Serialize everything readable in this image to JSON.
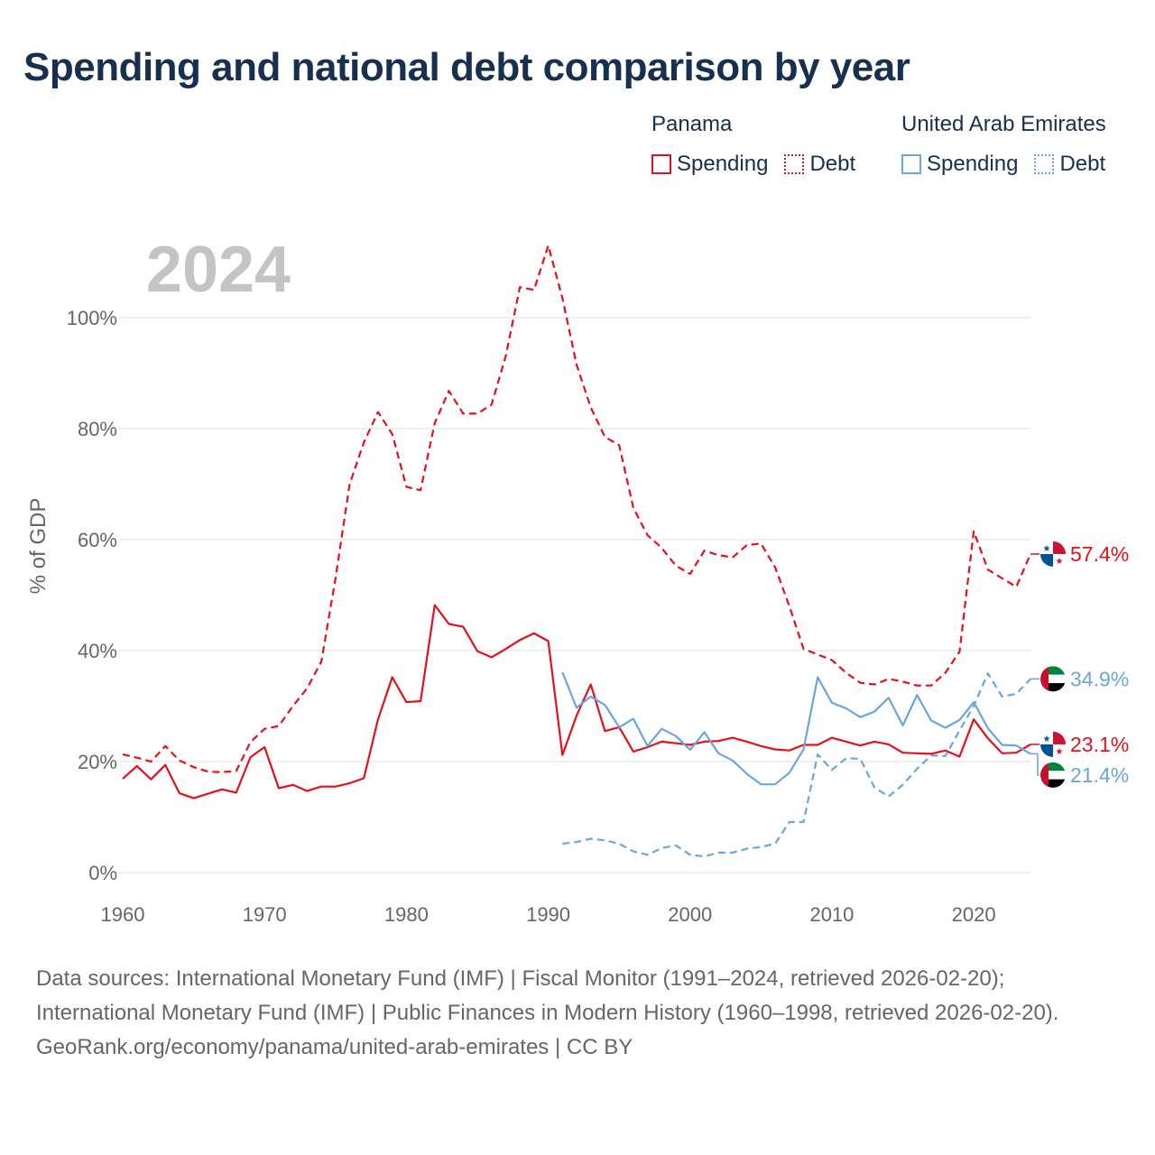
{
  "title": "Spending and national debt comparison by year",
  "legend": [
    {
      "group": "Panama",
      "items": [
        {
          "label": "Spending",
          "style": "solid",
          "color": "#e3111b"
        },
        {
          "label": "Debt",
          "style": "dotted",
          "color": "#e3111b"
        }
      ]
    },
    {
      "group": "United Arab Emirates",
      "items": [
        {
          "label": "Spending",
          "style": "solid",
          "color": "#6aa6de"
        },
        {
          "label": "Debt",
          "style": "dotted",
          "color": "#6aa6de"
        }
      ]
    }
  ],
  "year_label": "2024",
  "footer": {
    "sources": "Data sources: International Monetary Fund (IMF) | Fiscal Monitor (1991–2024, retrieved 2026-02-20); International Monetary Fund (IMF) | Public Finances in Modern History (1960–1998, retrieved 2026-02-20).",
    "attribution": "GeoRank.org/economy/panama/united-arab-emirates | CC BY"
  },
  "chart_data": {
    "type": "line",
    "ylabel": "% of GDP",
    "xlim": [
      1960,
      2024
    ],
    "ylim": [
      0,
      100
    ],
    "x_ticks": [
      1960,
      1970,
      1980,
      1990,
      2000,
      2010,
      2020
    ],
    "y_ticks": [
      0,
      20,
      40,
      60,
      80,
      100
    ],
    "y_tick_labels": [
      "0%",
      "20%",
      "40%",
      "60%",
      "80%",
      "100%"
    ],
    "grid": true,
    "series": [
      {
        "name": "Panama Debt",
        "country": "Panama",
        "metric": "Debt",
        "color": "#e3111b",
        "dash": "dashed",
        "end_label": "57.4%",
        "flag": "panama",
        "start_year": 1960,
        "values": [
          21.3,
          20.7,
          20.0,
          22.8,
          20.2,
          19.0,
          18.2,
          18.1,
          18.3,
          23.5,
          25.9,
          26.4,
          30.0,
          33.2,
          38.0,
          53.0,
          70.0,
          77.5,
          83.0,
          79.0,
          69.5,
          68.9,
          81.0,
          86.8,
          82.7,
          82.7,
          84.3,
          93.0,
          105.5,
          105.0,
          113.0,
          103.5,
          91.5,
          83.8,
          78.5,
          77.0,
          65.7,
          60.8,
          58.5,
          55.3,
          53.8,
          58.0,
          57.2,
          56.8,
          59.0,
          59.3,
          55.0,
          48.0,
          40.3,
          39.3,
          38.3,
          36.0,
          34.2,
          33.9,
          34.9,
          34.4,
          33.7,
          33.7,
          36.0,
          39.8,
          61.5,
          54.6,
          53.0,
          51.5,
          57.4
        ]
      },
      {
        "name": "Panama Spending",
        "country": "Panama",
        "metric": "Spending",
        "color": "#e3111b",
        "dash": "solid",
        "end_label": "23.1%",
        "flag": "panama",
        "start_year": 1960,
        "values": [
          16.9,
          19.2,
          16.8,
          19.4,
          14.3,
          13.4,
          14.2,
          15.0,
          14.4,
          20.8,
          22.6,
          15.2,
          15.8,
          14.7,
          15.5,
          15.5,
          16.1,
          17.0,
          27.6,
          35.2,
          30.7,
          30.9,
          48.2,
          44.8,
          44.3,
          39.9,
          38.8,
          40.3,
          41.9,
          43.1,
          41.7,
          21.2,
          28.3,
          33.9,
          25.5,
          26.2,
          21.8,
          22.6,
          23.6,
          23.3,
          23.0,
          23.6,
          23.7,
          24.3,
          23.6,
          22.8,
          22.2,
          22.0,
          23.0,
          23.0,
          24.3,
          23.6,
          22.9,
          23.6,
          23.1,
          21.6,
          21.5,
          21.4,
          22.0,
          20.9,
          27.6,
          24.2,
          21.5,
          21.6,
          23.1
        ]
      },
      {
        "name": "United Arab Emirates Spending",
        "country": "United Arab Emirates",
        "metric": "Spending",
        "color": "#6aa6de",
        "dash": "solid",
        "end_label": "21.4%",
        "flag": "uae",
        "start_year": 1991,
        "values": [
          36.1,
          29.7,
          31.7,
          30.2,
          26.2,
          27.7,
          22.8,
          25.9,
          24.6,
          22.1,
          25.3,
          21.5,
          20.2,
          17.8,
          15.9,
          15.9,
          18.0,
          22.2,
          35.2,
          30.6,
          29.6,
          28.0,
          29.0,
          31.5,
          26.5,
          32.0,
          27.4,
          26.1,
          27.5,
          30.7,
          26.0,
          23.0,
          22.9,
          21.4
        ]
      },
      {
        "name": "United Arab Emirates Debt",
        "country": "United Arab Emirates",
        "metric": "Debt",
        "color": "#6aa6de",
        "dash": "dashed",
        "end_label": "34.9%",
        "flag": "uae",
        "start_year": 1991,
        "values": [
          5.2,
          5.5,
          6.1,
          5.8,
          5.2,
          3.8,
          3.2,
          4.4,
          4.9,
          3.2,
          2.9,
          3.6,
          3.6,
          4.3,
          4.6,
          5.2,
          9.1,
          9.1,
          21.3,
          18.5,
          20.6,
          20.5,
          15.3,
          13.7,
          15.8,
          18.7,
          21.1,
          21.0,
          25.6,
          30.0,
          35.9,
          31.7,
          32.2,
          34.9
        ]
      }
    ]
  }
}
